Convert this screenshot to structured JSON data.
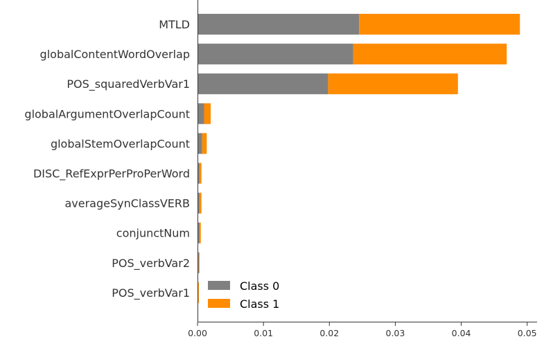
{
  "chart_data": {
    "type": "bar",
    "orientation": "horizontal",
    "stacked": true,
    "categories": [
      "MTLD",
      "globalContentWordOverlap",
      "POS_squaredVerbVar1",
      "globalArgumentOverlapCount",
      "globalStemOverlapCount",
      "DISC_RefExprPerProPerWord",
      "averageSynClassVERB",
      "conjunctNum",
      "POS_verbVar2",
      "POS_verbVar1"
    ],
    "series": [
      {
        "name": "Class 0",
        "color": "#808080",
        "values": [
          0.0245,
          0.0236,
          0.0198,
          0.001,
          0.0007,
          0.0003,
          0.0003,
          0.0003,
          0.0002,
          0.0001
        ]
      },
      {
        "name": "Class 1",
        "color": "#ff8c00",
        "values": [
          0.0244,
          0.0233,
          0.0197,
          0.001,
          0.0007,
          0.0003,
          0.0003,
          0.0002,
          0.0001,
          0.0001
        ]
      }
    ],
    "xlim": [
      0,
      0.0515
    ],
    "xticks": [
      "0.00",
      "0.01",
      "0.02",
      "0.03",
      "0.04",
      "0.05"
    ],
    "xlabel": "",
    "ylabel": "",
    "title": "",
    "grid": false,
    "legend_position": "lower-left"
  }
}
